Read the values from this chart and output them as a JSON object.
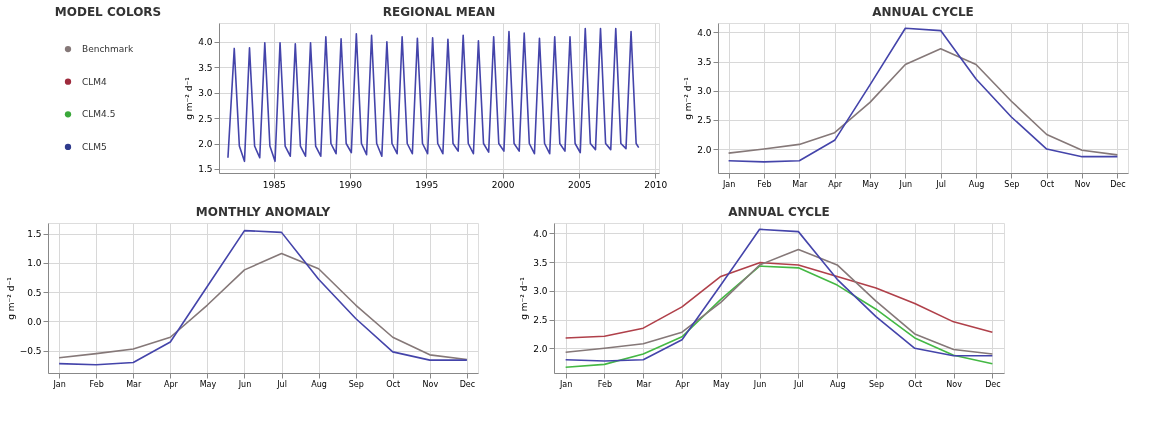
{
  "chart_data": [
    {
      "type": "other",
      "title": "MODEL COLORS",
      "series": [
        {
          "name": "Benchmark",
          "color": "#857878"
        },
        {
          "name": "CLM4",
          "color": "#9e2b3c"
        },
        {
          "name": "CLM4.5",
          "color": "#3aa83a"
        },
        {
          "name": "CLM5",
          "color": "#2e3a8c"
        }
      ]
    },
    {
      "type": "line",
      "title": "REGIONAL MEAN",
      "ylabel": "g m⁻² d⁻¹",
      "xlim": [
        "1981-06",
        "2010-04"
      ],
      "xticks": [
        "1985",
        "1990",
        "1995",
        "2000",
        "2005",
        "2010"
      ],
      "ylim": [
        1.42,
        4.37
      ],
      "yticks": [
        1.5,
        {
          "value": 2,
          "label": "2.0"
        },
        2.5,
        {
          "value": 3,
          "label": "3.0"
        },
        3.5,
        {
          "value": 4,
          "label": "4.0"
        }
      ],
      "grid": true,
      "series": [
        {
          "color": "#4444aa",
          "x": [
            "1982-01",
            "1982-06",
            "1982-10",
            "1983-02",
            "1983-06",
            "1983-10",
            "1984-02",
            "1984-06",
            "1984-10",
            "1985-02",
            "1985-06",
            "1985-10",
            "1986-02",
            "1986-06",
            "1986-10",
            "1987-02",
            "1987-06",
            "1987-10",
            "1988-02",
            "1988-06",
            "1988-10",
            "1989-02",
            "1989-06",
            "1989-10",
            "1990-02",
            "1990-06",
            "1990-10",
            "1991-02",
            "1991-06",
            "1991-10",
            "1992-02",
            "1992-06",
            "1992-10",
            "1993-02",
            "1993-06",
            "1993-10",
            "1994-02",
            "1994-06",
            "1994-10",
            "1995-02",
            "1995-06",
            "1995-10",
            "1996-02",
            "1996-06",
            "1996-10",
            "1997-02",
            "1997-06",
            "1997-10",
            "1998-02",
            "1998-06",
            "1998-10",
            "1999-02",
            "1999-06",
            "1999-10",
            "2000-02",
            "2000-06",
            "2000-10",
            "2001-02",
            "2001-06",
            "2001-10",
            "2002-02",
            "2002-06",
            "2002-10",
            "2003-02",
            "2003-06",
            "2003-10",
            "2004-02",
            "2004-06",
            "2004-10",
            "2005-02",
            "2005-06",
            "2005-10",
            "2006-02",
            "2006-06",
            "2006-10",
            "2007-02",
            "2007-06",
            "2007-10",
            "2008-02",
            "2008-06",
            "2008-10",
            "2008-12"
          ],
          "values": [
            1.72,
            3.87,
            1.95,
            1.65,
            3.88,
            1.95,
            1.72,
            3.98,
            1.95,
            1.65,
            3.98,
            1.95,
            1.75,
            3.96,
            1.95,
            1.75,
            3.98,
            1.95,
            1.75,
            4.1,
            2.0,
            1.8,
            4.06,
            2.0,
            1.82,
            4.16,
            2.0,
            1.78,
            4.13,
            2.0,
            1.75,
            4.0,
            2.0,
            1.8,
            4.1,
            2.0,
            1.8,
            4.07,
            2.0,
            1.8,
            4.08,
            2.0,
            1.8,
            4.05,
            2.0,
            1.85,
            4.13,
            2.0,
            1.8,
            4.02,
            2.0,
            1.83,
            4.1,
            2.0,
            1.85,
            4.2,
            2.0,
            1.85,
            4.17,
            2.0,
            1.8,
            4.07,
            2.0,
            1.8,
            4.1,
            2.0,
            1.85,
            4.1,
            2.0,
            1.82,
            4.26,
            2.0,
            1.88,
            4.26,
            2.0,
            1.88,
            4.26,
            2.0,
            1.9,
            4.2,
            2.0,
            1.92
          ]
        }
      ]
    },
    {
      "type": "line",
      "title": "ANNUAL CYCLE",
      "ylabel": "g m⁻² d⁻¹",
      "categories": [
        "Jan",
        "Feb",
        "Mar",
        "Apr",
        "May",
        "Jun",
        "Jul",
        "Aug",
        "Sep",
        "Oct",
        "Nov",
        "Dec"
      ],
      "ylim": [
        1.59,
        4.16
      ],
      "yticks": [
        {
          "value": 2,
          "label": "2.0"
        },
        2.5,
        {
          "value": 3,
          "label": "3.0"
        },
        3.5,
        {
          "value": 4,
          "label": "4.0"
        }
      ],
      "grid": true,
      "series": [
        {
          "color": "#857878",
          "values": [
            1.93,
            2.0,
            2.08,
            2.28,
            2.8,
            3.45,
            3.72,
            3.45,
            2.82,
            2.25,
            1.98,
            1.9
          ]
        },
        {
          "color": "#4444aa",
          "values": [
            1.8,
            1.78,
            1.8,
            2.15,
            3.1,
            4.07,
            4.03,
            3.2,
            2.55,
            2.0,
            1.87,
            1.87
          ]
        }
      ]
    },
    {
      "type": "line",
      "title": "MONTHLY ANOMALY",
      "ylabel": "g m⁻² d⁻¹",
      "categories": [
        "Jan",
        "Feb",
        "Mar",
        "Apr",
        "May",
        "Jun",
        "Jul",
        "Aug",
        "Sep",
        "Oct",
        "Nov",
        "Dec"
      ],
      "ylim": [
        -0.88,
        1.68
      ],
      "yticks": [
        -0.5,
        {
          "value": 0,
          "label": "0.0"
        },
        0.5,
        {
          "value": 1,
          "label": "1.0"
        },
        1.5
      ],
      "grid": true,
      "series": [
        {
          "color": "#857878",
          "values": [
            -0.62,
            -0.55,
            -0.47,
            -0.27,
            0.28,
            0.88,
            1.16,
            0.9,
            0.28,
            -0.27,
            -0.57,
            -0.65
          ]
        },
        {
          "color": "#4444aa",
          "values": [
            -0.72,
            -0.74,
            -0.7,
            -0.35,
            0.6,
            1.55,
            1.52,
            0.72,
            0.05,
            -0.52,
            -0.66,
            -0.66
          ]
        }
      ]
    },
    {
      "type": "line",
      "title": "ANNUAL CYCLE",
      "ylabel": "g m⁻² d⁻¹",
      "categories": [
        "Jan",
        "Feb",
        "Mar",
        "Apr",
        "May",
        "Jun",
        "Jul",
        "Aug",
        "Sep",
        "Oct",
        "Nov",
        "Dec"
      ],
      "ylim": [
        1.57,
        4.18
      ],
      "yticks": [
        {
          "value": 2,
          "label": "2.0"
        },
        2.5,
        {
          "value": 3,
          "label": "3.0"
        },
        3.5,
        {
          "value": 4,
          "label": "4.0"
        }
      ],
      "grid": true,
      "series": [
        {
          "color": "#b0404a",
          "values": [
            2.18,
            2.21,
            2.35,
            2.72,
            3.25,
            3.49,
            3.45,
            3.25,
            3.05,
            2.78,
            2.46,
            2.28
          ]
        },
        {
          "color": "#44b844",
          "values": [
            1.67,
            1.72,
            1.9,
            2.2,
            2.85,
            3.43,
            3.4,
            3.1,
            2.68,
            2.18,
            1.88,
            1.73
          ]
        },
        {
          "color": "#857878",
          "values": [
            1.93,
            2.0,
            2.08,
            2.28,
            2.8,
            3.45,
            3.72,
            3.45,
            2.82,
            2.25,
            1.98,
            1.9
          ]
        },
        {
          "color": "#4444aa",
          "values": [
            1.8,
            1.78,
            1.8,
            2.15,
            3.1,
            4.07,
            4.03,
            3.2,
            2.55,
            2.0,
            1.87,
            1.87
          ]
        }
      ]
    }
  ]
}
